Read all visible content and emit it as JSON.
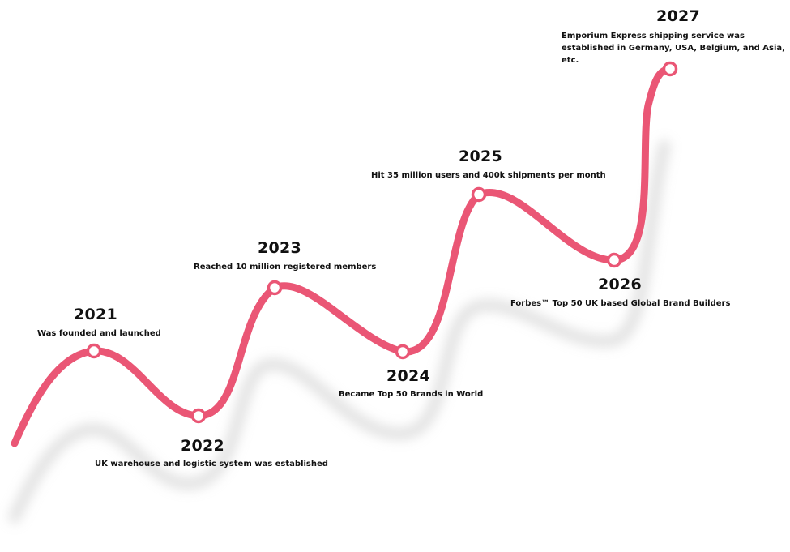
{
  "colors": {
    "line": "#ea5675",
    "shadow": "#cfcfcf",
    "marker_fill": "#ffffff",
    "text": "#111111"
  },
  "milestones": [
    {
      "year": "2021",
      "description": "Was founded and launched"
    },
    {
      "year": "2022",
      "description": "UK warehouse and logistic system was established"
    },
    {
      "year": "2023",
      "description": "Reached 10 million registered members"
    },
    {
      "year": "2024",
      "description": "Became Top 50 Brands in World"
    },
    {
      "year": "2025",
      "description": "Hit 35 million users and 400k shipments per month"
    },
    {
      "year": "2026",
      "description": "Forbes™ Top 50 UK based Global Brand Builders"
    },
    {
      "year": "2027",
      "description": "Emporium Express shipping service was established in Germany, USA, Belgium, and Asia, etc."
    }
  ]
}
